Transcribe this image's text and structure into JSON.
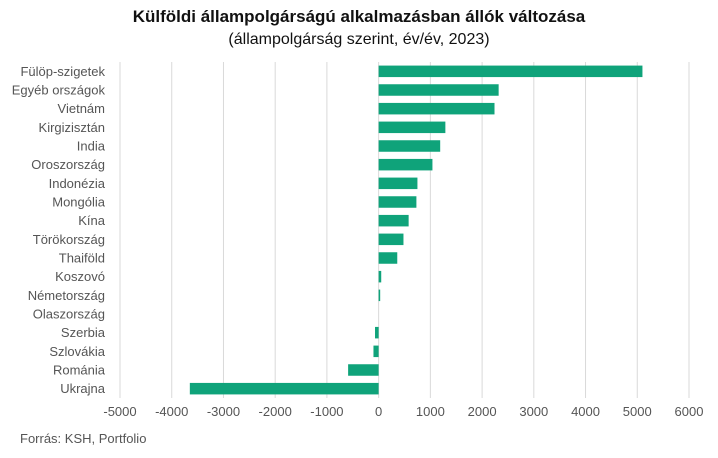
{
  "chart_data": {
    "type": "bar",
    "orientation": "horizontal",
    "title": "Külföldi állampolgárságú alkalmazásban állók változása",
    "subtitle": "(állampolgárság szerint, év/év, 2023)",
    "categories": [
      "Fülöp-szigetek",
      "Egyéb országok",
      "Vietnám",
      "Kirgizisztán",
      "India",
      "Oroszország",
      "Indonézia",
      "Mongólia",
      "Kína",
      "Törökország",
      "Thaiföld",
      "Koszovó",
      "Németország",
      "Olaszország",
      "Szerbia",
      "Szlovákia",
      "Románia",
      "Ukrajna"
    ],
    "values": [
      5100,
      2320,
      2240,
      1290,
      1190,
      1040,
      750,
      730,
      580,
      480,
      360,
      50,
      30,
      0,
      -70,
      -100,
      -590,
      -3650
    ],
    "xlim": [
      -5000,
      6000
    ],
    "xticks": [
      "-5000",
      "-4000",
      "-3000",
      "-2000",
      "-1000",
      "0",
      "1000",
      "2000",
      "3000",
      "4000",
      "5000",
      "6000"
    ],
    "grid": true,
    "bar_color": "#0fa37a",
    "source": "Forrás: KSH, Portfolio"
  }
}
